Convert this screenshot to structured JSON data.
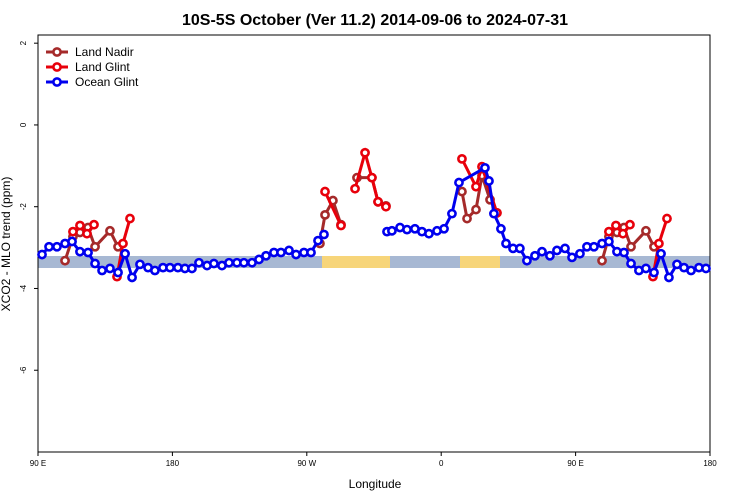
{
  "chart_data": {
    "type": "line",
    "title": "10S-5S October (Ver 11.2)   2014-09-06 to 2024-07-31",
    "x_label": "Longitude",
    "y_label": "XCO2 - MLO trend (ppm)",
    "xlim": [
      90,
      540
    ],
    "xticks": [
      {
        "value": 90,
        "label": "90 E"
      },
      {
        "value": 180,
        "label": "180"
      },
      {
        "value": 270,
        "label": "90 W"
      },
      {
        "value": 360,
        "label": "0"
      },
      {
        "value": 450,
        "label": "90 E"
      },
      {
        "value": 540,
        "label": "180"
      }
    ],
    "ylim": [
      -8,
      2.2
    ],
    "yticks": [
      2,
      0,
      -2,
      -4,
      -6
    ],
    "legend": "top-left",
    "series": [
      {
        "name": "Land Nadir",
        "color": "#a52a2a",
        "x": [
          108.1,
          113.4,
          118.1,
          123.5,
          128.2,
          138.2,
          143.6,
          null,
          278.8,
          282.2,
          287.5,
          292.9,
          null,
          303.6,
          313.6,
          317.7,
          323.0,
          null,
          373.9,
          377.3,
          383.3,
          387.3,
          392.7,
          397.3,
          null,
          467.7,
          472.3,
          477.7,
          482.4,
          487.1,
          497.1,
          502.5
        ],
        "values": [
          -3.32,
          -2.73,
          -2.63,
          -2.51,
          -2.98,
          -2.59,
          -2.98,
          null,
          -2.9,
          -2.2,
          -1.85,
          -2.44,
          null,
          -1.29,
          -1.29,
          -1.88,
          -1.98,
          null,
          -1.63,
          -2.29,
          -2.07,
          -1.24,
          -1.83,
          -2.15,
          null,
          -3.32,
          -2.73,
          -2.63,
          -2.51,
          -2.98,
          -2.59,
          -2.98
        ]
      },
      {
        "name": "Land Glint",
        "color": "#e8000b",
        "x": [
          113.4,
          118.1,
          122.8,
          127.5,
          null,
          142.9,
          146.9,
          151.6,
          null,
          282.2,
          292.9,
          null,
          302.3,
          309.0,
          313.6,
          317.7,
          323.0,
          null,
          373.9,
          383.3,
          387.3,
          397.3,
          null,
          472.3,
          477.0,
          481.7,
          486.4,
          null,
          501.8,
          505.8,
          511.2
        ],
        "values": [
          -2.61,
          -2.46,
          -2.66,
          -2.44,
          null,
          -3.71,
          -2.9,
          -2.29,
          null,
          -1.63,
          -2.46,
          null,
          -1.56,
          -0.68,
          -1.29,
          -1.88,
          -2.0,
          null,
          -0.83,
          -1.51,
          -1.02,
          -2.15,
          null,
          -2.61,
          -2.46,
          -2.66,
          -2.44,
          null,
          -3.71,
          -2.9,
          -2.29
        ]
      },
      {
        "name": "Ocean Glint",
        "color": "#0000ee",
        "x": [
          92.7,
          97.4,
          102.7,
          108.1,
          112.8,
          118.1,
          123.5,
          128.2,
          132.9,
          138.2,
          143.6,
          148.3,
          153.0,
          158.3,
          163.7,
          168.3,
          173.7,
          178.4,
          183.7,
          188.4,
          193.1,
          197.8,
          203.2,
          207.8,
          213.2,
          217.9,
          223.2,
          227.9,
          233.3,
          238.0,
          242.7,
          248.0,
          252.7,
          258.1,
          262.8,
          268.1,
          272.8,
          277.5,
          281.5,
          null,
          323.7,
          327.0,
          332.4,
          337.1,
          342.4,
          347.1,
          351.8,
          357.2,
          361.9,
          367.2,
          371.9,
          389.3,
          392.0,
          395.3,
          400.0,
          403.4,
          408.1,
          412.7,
          417.4,
          422.8,
          427.5,
          432.8,
          437.5,
          442.9,
          447.6,
          452.9,
          457.6,
          462.3,
          467.7,
          472.3,
          477.7,
          482.4,
          487.1,
          492.4,
          497.1,
          502.5,
          507.2,
          512.5,
          517.9,
          522.6,
          527.3,
          532.6,
          537.3
        ],
        "values": [
          -3.17,
          -2.98,
          -2.98,
          -2.9,
          -2.85,
          -3.1,
          -3.12,
          -3.39,
          -3.56,
          -3.51,
          -3.61,
          -3.15,
          -3.73,
          -3.41,
          -3.49,
          -3.56,
          -3.49,
          -3.49,
          -3.49,
          -3.51,
          -3.51,
          -3.37,
          -3.44,
          -3.39,
          -3.44,
          -3.37,
          -3.37,
          -3.37,
          -3.37,
          -3.29,
          -3.2,
          -3.12,
          -3.12,
          -3.07,
          -3.17,
          -3.12,
          -3.12,
          -2.83,
          -2.68,
          null,
          -2.61,
          -2.59,
          -2.51,
          -2.56,
          -2.54,
          -2.61,
          -2.66,
          -2.59,
          -2.54,
          -2.17,
          -1.41,
          -1.05,
          -1.37,
          -2.17,
          -2.54,
          -2.9,
          -3.02,
          -3.02,
          -3.32,
          -3.2,
          -3.1,
          -3.2,
          -3.07,
          -3.02,
          -3.24,
          -3.15,
          -2.98,
          -2.98,
          -2.9,
          -2.85,
          -3.1,
          -3.12,
          -3.39,
          -3.56,
          -3.51,
          -3.61,
          -3.15,
          -3.73,
          -3.41,
          -3.49,
          -3.56,
          -3.49,
          -3.51
        ]
      }
    ]
  }
}
